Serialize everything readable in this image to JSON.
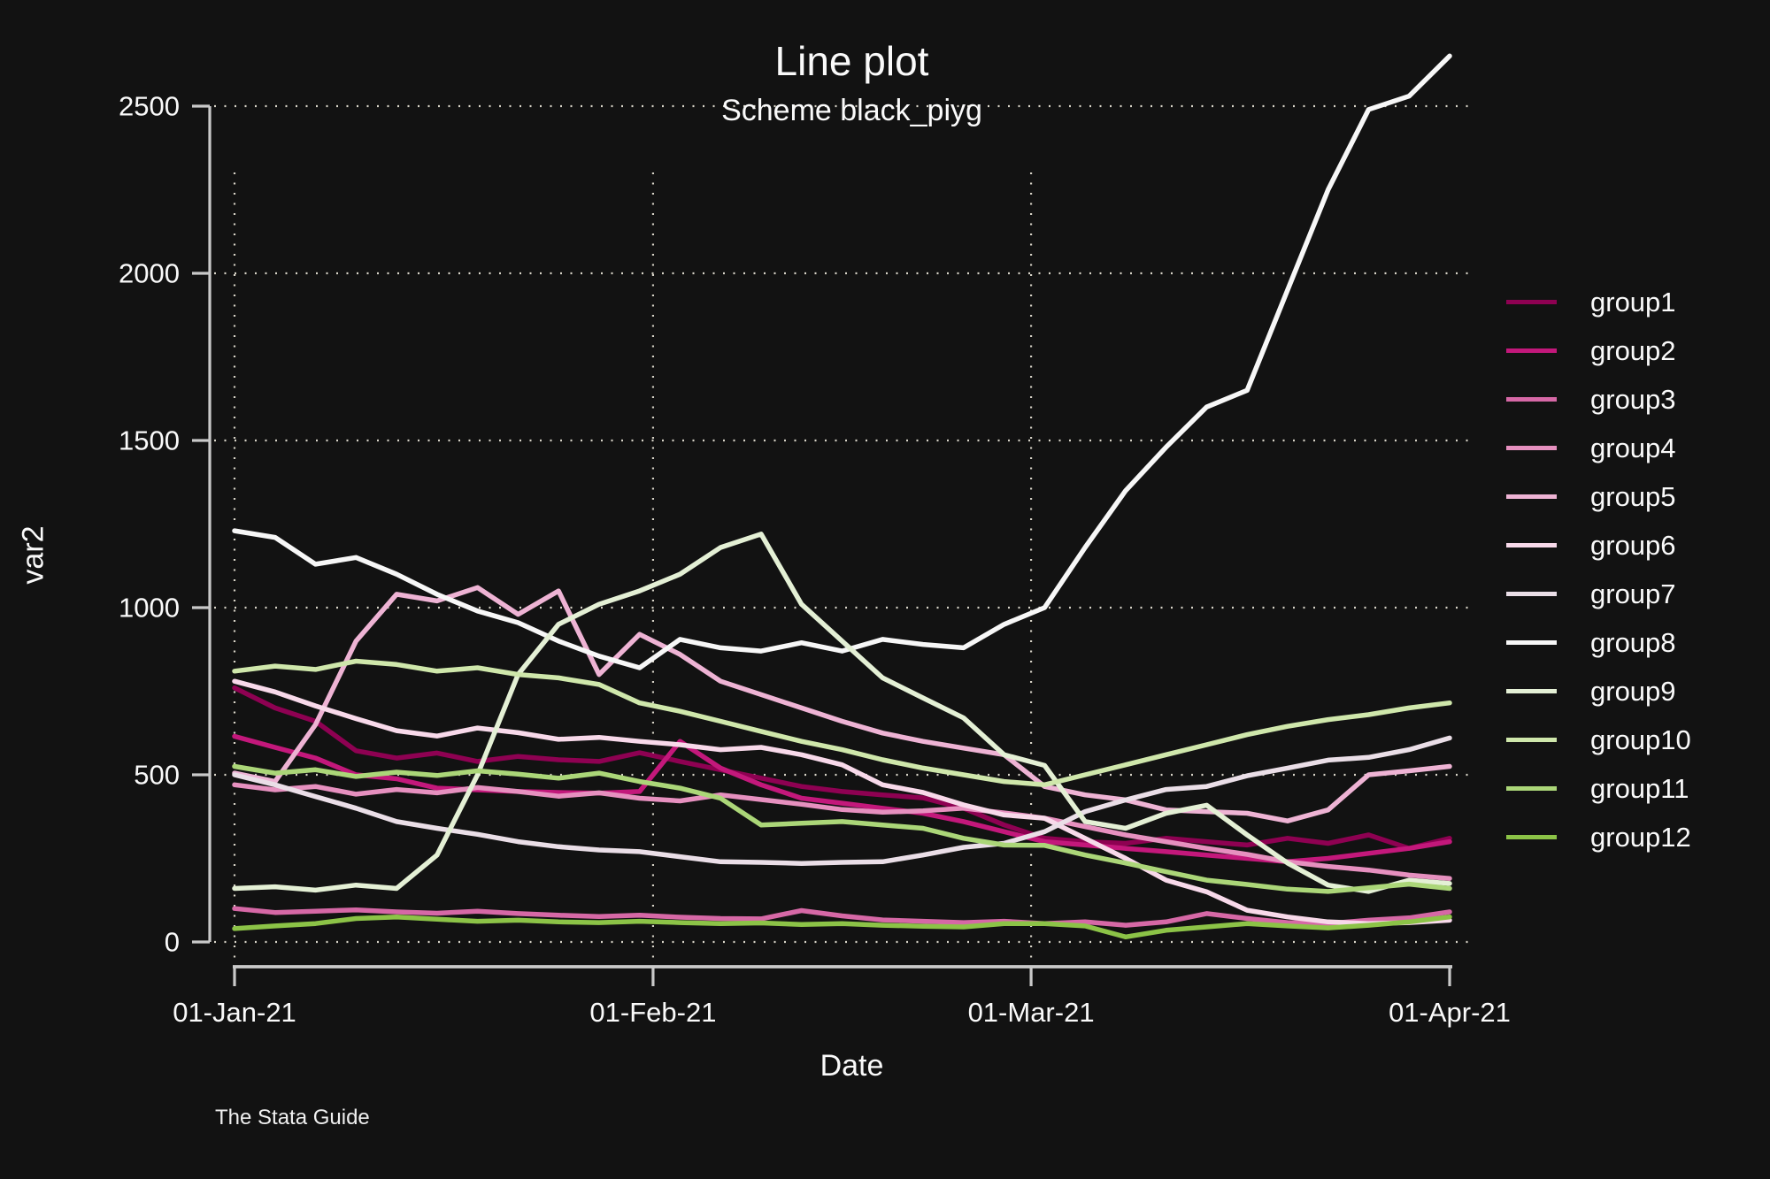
{
  "header": {
    "title": "Line plot",
    "subtitle": "Scheme black_piyg",
    "caption": "The Stata Guide"
  },
  "chart_data": {
    "type": "line",
    "title": "Line plot",
    "subtitle": "Scheme black_piyg",
    "xlabel": "Date",
    "ylabel": "var2",
    "ylim": [
      0,
      2500
    ],
    "grid": "dotted",
    "legend_position": "right",
    "background": "#121212",
    "axis_color": "#c9c9c9",
    "gridline_color": "#d8d4c8",
    "text_color": "#fafafa",
    "x_days": [
      0,
      3,
      6,
      9,
      12,
      15,
      18,
      21,
      24,
      27,
      30,
      33,
      36,
      39,
      42,
      45,
      48,
      51,
      54,
      57,
      60,
      63,
      66,
      69,
      72,
      75,
      78,
      81,
      84,
      87,
      90
    ],
    "x_ticks": [
      {
        "day": 0,
        "label": "01-Jan-21",
        "grid": true
      },
      {
        "day": 31,
        "label": "01-Feb-21",
        "grid": true
      },
      {
        "day": 59,
        "label": "01-Mar-21",
        "grid": true
      },
      {
        "day": 90,
        "label": "01-Apr-21",
        "grid": false
      }
    ],
    "y_ticks": [
      {
        "value": 0,
        "label": "0"
      },
      {
        "value": 500,
        "label": "500"
      },
      {
        "value": 1000,
        "label": "1000"
      },
      {
        "value": 1500,
        "label": "1500"
      },
      {
        "value": 2000,
        "label": "2000"
      },
      {
        "value": 2500,
        "label": "2500"
      }
    ],
    "series": [
      {
        "name": "group1",
        "color": "#8e0152",
        "values": [
          760,
          700,
          660,
          572,
          550,
          565,
          540,
          555,
          545,
          540,
          566,
          540,
          515,
          490,
          465,
          450,
          440,
          431,
          400,
          350,
          310,
          300,
          295,
          310,
          300,
          290,
          310,
          295,
          320,
          280,
          310
        ]
      },
      {
        "name": "group2",
        "color": "#c3187b",
        "values": [
          615,
          582,
          550,
          500,
          488,
          460,
          455,
          450,
          447,
          445,
          450,
          600,
          520,
          470,
          430,
          415,
          400,
          385,
          360,
          330,
          300,
          290,
          280,
          270,
          260,
          250,
          240,
          250,
          265,
          280,
          300
        ]
      },
      {
        "name": "group3",
        "color": "#d668a6",
        "values": [
          100,
          88,
          92,
          96,
          90,
          86,
          92,
          85,
          80,
          76,
          80,
          74,
          70,
          69,
          94,
          78,
          66,
          62,
          58,
          62,
          55,
          60,
          50,
          60,
          85,
          70,
          58,
          55,
          65,
          72,
          90
        ]
      },
      {
        "name": "group4",
        "color": "#e690bf",
        "values": [
          470,
          455,
          465,
          442,
          456,
          446,
          462,
          450,
          436,
          446,
          430,
          422,
          440,
          426,
          412,
          396,
          388,
          392,
          400,
          386,
          370,
          345,
          320,
          300,
          280,
          262,
          240,
          226,
          215,
          200,
          190
        ]
      },
      {
        "name": "group5",
        "color": "#eeb3d4",
        "values": [
          505,
          480,
          650,
          900,
          1040,
          1020,
          1060,
          980,
          1050,
          800,
          920,
          860,
          780,
          740,
          700,
          660,
          625,
          600,
          580,
          560,
          465,
          440,
          425,
          395,
          390,
          385,
          362,
          395,
          500,
          512,
          525
        ]
      },
      {
        "name": "group6",
        "color": "#f8d9ea",
        "values": [
          780,
          748,
          706,
          668,
          632,
          616,
          640,
          626,
          606,
          612,
          600,
          590,
          575,
          582,
          560,
          530,
          470,
          447,
          410,
          380,
          370,
          310,
          250,
          185,
          150,
          95,
          75,
          60,
          55,
          58,
          65
        ]
      },
      {
        "name": "group7",
        "color": "#eadee7",
        "values": [
          500,
          470,
          435,
          400,
          360,
          340,
          322,
          300,
          285,
          275,
          270,
          255,
          240,
          238,
          235,
          238,
          240,
          260,
          283,
          295,
          330,
          390,
          425,
          456,
          465,
          497,
          520,
          544,
          552,
          575,
          610
        ]
      },
      {
        "name": "group8",
        "color": "#f7f7f7",
        "values": [
          1230,
          1210,
          1130,
          1150,
          1100,
          1040,
          990,
          955,
          900,
          855,
          820,
          905,
          880,
          870,
          895,
          870,
          905,
          890,
          880,
          950,
          1000,
          1180,
          1350,
          1480,
          1600,
          1650,
          1950,
          2250,
          2490,
          2530,
          2650
        ]
      },
      {
        "name": "group9",
        "color": "#e4f0d5",
        "values": [
          160,
          165,
          155,
          170,
          160,
          260,
          500,
          800,
          950,
          1010,
          1050,
          1100,
          1180,
          1220,
          1010,
          900,
          790,
          730,
          670,
          560,
          528,
          360,
          340,
          385,
          409,
          320,
          236,
          170,
          151,
          185,
          175
        ]
      },
      {
        "name": "group10",
        "color": "#cfe7ab",
        "values": [
          810,
          825,
          815,
          840,
          830,
          810,
          820,
          800,
          790,
          770,
          715,
          690,
          660,
          630,
          600,
          575,
          545,
          520,
          500,
          480,
          470,
          500,
          530,
          560,
          590,
          620,
          645,
          665,
          680,
          700,
          715
        ]
      },
      {
        "name": "group11",
        "color": "#abd678",
        "values": [
          525,
          505,
          515,
          495,
          508,
          498,
          512,
          502,
          490,
          505,
          480,
          460,
          430,
          350,
          355,
          360,
          350,
          340,
          310,
          290,
          289,
          260,
          236,
          210,
          185,
          172,
          158,
          151,
          162,
          173,
          160
        ]
      },
      {
        "name": "group12",
        "color": "#8cc347",
        "values": [
          40,
          48,
          55,
          70,
          75,
          68,
          62,
          65,
          60,
          58,
          62,
          58,
          55,
          57,
          52,
          55,
          50,
          47,
          45,
          55,
          55,
          48,
          15,
          35,
          45,
          55,
          48,
          42,
          50,
          60,
          75
        ]
      }
    ]
  }
}
